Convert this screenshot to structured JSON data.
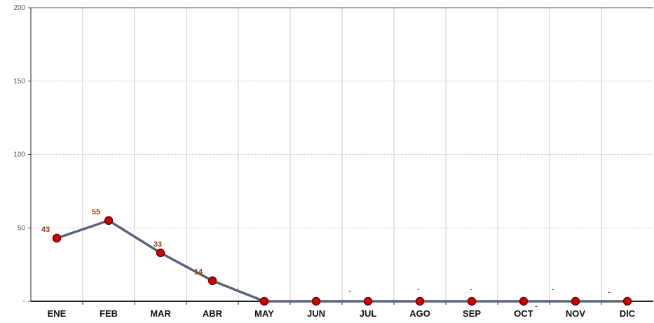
{
  "chart_data": {
    "type": "line",
    "categories": [
      "ENE",
      "FEB",
      "MAR",
      "ABR",
      "MAY",
      "JUN",
      "JUL",
      "AGO",
      "SEP",
      "OCT",
      "NOV",
      "DIC"
    ],
    "series": [
      {
        "values": [
          43,
          55,
          33,
          14,
          0,
          0,
          0,
          0,
          0,
          0,
          0,
          0
        ]
      }
    ],
    "data_labels": [
      "43",
      "55",
      "33",
      "14",
      "",
      "",
      "-",
      "-",
      "-",
      "-",
      "-",
      "-"
    ],
    "yticks": [
      0,
      50,
      100,
      150,
      200
    ],
    "ytick_labels": [
      "-",
      "50",
      "100",
      "150",
      "200"
    ],
    "ylim": [
      0,
      200
    ],
    "grid": true,
    "line_color": "#5a6478",
    "marker_color": "#cc0000",
    "label_color": "#a0400a"
  }
}
